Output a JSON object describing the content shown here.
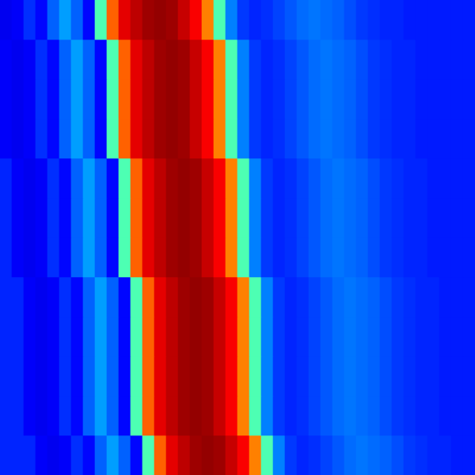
{
  "chart_data": {
    "type": "heatmap",
    "tick_labels": false,
    "color": "jet",
    "color_range": [
      0,
      1
    ],
    "cells": [
      [
        0.11,
        0.12,
        0.17,
        0.13,
        0.22,
        0.28,
        0.22,
        0.13,
        0.45,
        0.78,
        0.9,
        0.94,
        0.97,
        0.98,
        0.97,
        0.93,
        0.88,
        0.75,
        0.45,
        0.25,
        0.18,
        0.16,
        0.17,
        0.19,
        0.21,
        0.23,
        0.24,
        0.23,
        0.22,
        0.2,
        0.18,
        0.17,
        0.16,
        0.16,
        0.15,
        0.15,
        0.15,
        0.15,
        0.15,
        0.15
      ],
      [
        0.12,
        0.11,
        0.12,
        0.17,
        0.13,
        0.22,
        0.28,
        0.22,
        0.13,
        0.45,
        0.78,
        0.9,
        0.94,
        0.97,
        0.98,
        0.97,
        0.93,
        0.88,
        0.75,
        0.45,
        0.25,
        0.18,
        0.16,
        0.17,
        0.19,
        0.21,
        0.23,
        0.24,
        0.23,
        0.22,
        0.2,
        0.18,
        0.17,
        0.16,
        0.16,
        0.15,
        0.15,
        0.15,
        0.15,
        0.15
      ],
      [
        0.12,
        0.11,
        0.12,
        0.17,
        0.13,
        0.22,
        0.28,
        0.22,
        0.13,
        0.45,
        0.78,
        0.9,
        0.94,
        0.97,
        0.98,
        0.97,
        0.93,
        0.88,
        0.75,
        0.45,
        0.25,
        0.18,
        0.16,
        0.17,
        0.19,
        0.21,
        0.23,
        0.24,
        0.23,
        0.22,
        0.2,
        0.18,
        0.17,
        0.16,
        0.16,
        0.15,
        0.15,
        0.15,
        0.15,
        0.15
      ],
      [
        0.12,
        0.11,
        0.12,
        0.17,
        0.13,
        0.22,
        0.28,
        0.22,
        0.13,
        0.45,
        0.78,
        0.9,
        0.94,
        0.97,
        0.98,
        0.97,
        0.93,
        0.88,
        0.75,
        0.45,
        0.25,
        0.18,
        0.16,
        0.17,
        0.19,
        0.21,
        0.23,
        0.24,
        0.23,
        0.22,
        0.2,
        0.18,
        0.17,
        0.16,
        0.16,
        0.15,
        0.15,
        0.15,
        0.15,
        0.15
      ],
      [
        0.16,
        0.12,
        0.11,
        0.12,
        0.17,
        0.13,
        0.22,
        0.28,
        0.22,
        0.13,
        0.45,
        0.78,
        0.9,
        0.94,
        0.97,
        0.98,
        0.97,
        0.93,
        0.88,
        0.75,
        0.45,
        0.25,
        0.18,
        0.16,
        0.17,
        0.19,
        0.21,
        0.23,
        0.24,
        0.23,
        0.22,
        0.2,
        0.18,
        0.17,
        0.16,
        0.16,
        0.15,
        0.15,
        0.15,
        0.15
      ],
      [
        0.16,
        0.12,
        0.11,
        0.12,
        0.17,
        0.13,
        0.22,
        0.28,
        0.22,
        0.13,
        0.45,
        0.78,
        0.9,
        0.94,
        0.97,
        0.98,
        0.97,
        0.93,
        0.88,
        0.75,
        0.45,
        0.25,
        0.18,
        0.16,
        0.17,
        0.19,
        0.21,
        0.23,
        0.24,
        0.23,
        0.22,
        0.2,
        0.18,
        0.17,
        0.16,
        0.16,
        0.15,
        0.15,
        0.15,
        0.15
      ],
      [
        0.16,
        0.12,
        0.11,
        0.12,
        0.17,
        0.13,
        0.22,
        0.28,
        0.22,
        0.13,
        0.45,
        0.78,
        0.9,
        0.94,
        0.97,
        0.98,
        0.97,
        0.93,
        0.88,
        0.75,
        0.45,
        0.25,
        0.18,
        0.16,
        0.17,
        0.19,
        0.21,
        0.23,
        0.24,
        0.23,
        0.22,
        0.2,
        0.18,
        0.17,
        0.16,
        0.16,
        0.15,
        0.15,
        0.15,
        0.15
      ],
      [
        0.16,
        0.16,
        0.12,
        0.11,
        0.12,
        0.17,
        0.13,
        0.22,
        0.28,
        0.22,
        0.13,
        0.45,
        0.78,
        0.9,
        0.94,
        0.97,
        0.98,
        0.97,
        0.93,
        0.88,
        0.75,
        0.45,
        0.25,
        0.18,
        0.16,
        0.17,
        0.19,
        0.21,
        0.23,
        0.24,
        0.23,
        0.22,
        0.2,
        0.18,
        0.17,
        0.16,
        0.16,
        0.15,
        0.15,
        0.15
      ],
      [
        0.16,
        0.16,
        0.12,
        0.11,
        0.12,
        0.17,
        0.13,
        0.22,
        0.28,
        0.22,
        0.13,
        0.45,
        0.78,
        0.9,
        0.94,
        0.97,
        0.98,
        0.97,
        0.93,
        0.88,
        0.75,
        0.45,
        0.25,
        0.18,
        0.16,
        0.17,
        0.19,
        0.21,
        0.23,
        0.24,
        0.23,
        0.22,
        0.2,
        0.18,
        0.17,
        0.16,
        0.16,
        0.15,
        0.15,
        0.15
      ],
      [
        0.16,
        0.16,
        0.12,
        0.11,
        0.12,
        0.17,
        0.13,
        0.22,
        0.28,
        0.22,
        0.13,
        0.45,
        0.78,
        0.9,
        0.94,
        0.97,
        0.98,
        0.97,
        0.93,
        0.88,
        0.75,
        0.45,
        0.25,
        0.18,
        0.16,
        0.17,
        0.19,
        0.21,
        0.23,
        0.24,
        0.23,
        0.22,
        0.2,
        0.18,
        0.17,
        0.16,
        0.16,
        0.15,
        0.15,
        0.15
      ],
      [
        0.16,
        0.16,
        0.12,
        0.11,
        0.12,
        0.17,
        0.13,
        0.22,
        0.28,
        0.22,
        0.13,
        0.45,
        0.78,
        0.9,
        0.94,
        0.97,
        0.98,
        0.97,
        0.93,
        0.88,
        0.75,
        0.45,
        0.25,
        0.18,
        0.16,
        0.17,
        0.19,
        0.21,
        0.23,
        0.24,
        0.23,
        0.22,
        0.2,
        0.18,
        0.17,
        0.16,
        0.16,
        0.15,
        0.15,
        0.15
      ],
      [
        0.16,
        0.16,
        0.16,
        0.12,
        0.11,
        0.12,
        0.17,
        0.13,
        0.22,
        0.28,
        0.22,
        0.13,
        0.45,
        0.78,
        0.9,
        0.94,
        0.97,
        0.98,
        0.97,
        0.93,
        0.88,
        0.75,
        0.45,
        0.25,
        0.18,
        0.16,
        0.17,
        0.19,
        0.21,
        0.23,
        0.24,
        0.23,
        0.22,
        0.2,
        0.18,
        0.17,
        0.16,
        0.16,
        0.15,
        0.15
      ]
    ]
  }
}
